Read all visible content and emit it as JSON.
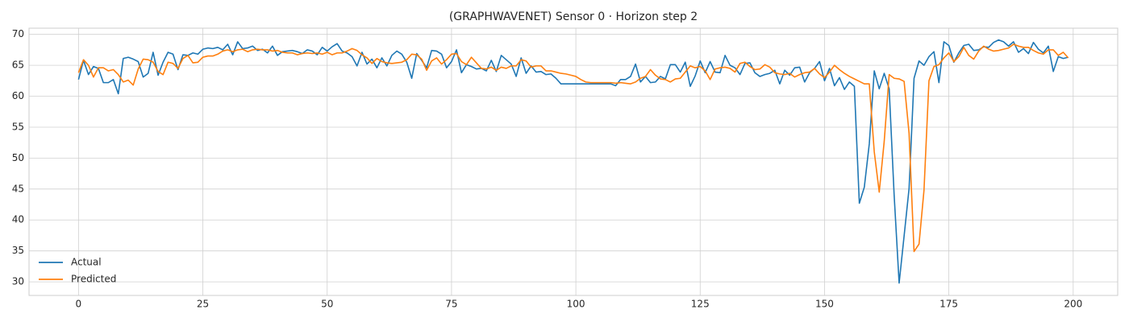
{
  "chart_data": {
    "type": "line",
    "title": "(GRAPHWAVENET) Sensor 0 · Horizon step 2",
    "x": [
      0,
      1,
      2,
      3,
      4,
      5,
      6,
      7,
      8,
      9,
      10,
      11,
      12,
      13,
      14,
      15,
      16,
      17,
      18,
      19,
      20,
      21,
      22,
      23,
      24,
      25,
      26,
      27,
      28,
      29,
      30,
      31,
      32,
      33,
      34,
      35,
      36,
      37,
      38,
      39,
      40,
      41,
      42,
      43,
      44,
      45,
      46,
      47,
      48,
      49,
      50,
      51,
      52,
      53,
      54,
      55,
      56,
      57,
      58,
      59,
      60,
      61,
      62,
      63,
      64,
      65,
      66,
      67,
      68,
      69,
      70,
      71,
      72,
      73,
      74,
      75,
      76,
      77,
      78,
      79,
      80,
      81,
      82,
      83,
      84,
      85,
      86,
      87,
      88,
      89,
      90,
      91,
      92,
      93,
      94,
      95,
      96,
      97,
      98,
      99,
      100,
      101,
      102,
      103,
      104,
      105,
      106,
      107,
      108,
      109,
      110,
      111,
      112,
      113,
      114,
      115,
      116,
      117,
      118,
      119,
      120,
      121,
      122,
      123,
      124,
      125,
      126,
      127,
      128,
      129,
      130,
      131,
      132,
      133,
      134,
      135,
      136,
      137,
      138,
      139,
      140,
      141,
      142,
      143,
      144,
      145,
      146,
      147,
      148,
      149,
      150,
      151,
      152,
      153,
      154,
      155,
      156,
      157,
      158,
      159,
      160,
      161,
      162,
      163,
      164,
      165,
      166,
      167,
      168,
      169,
      170,
      171,
      172,
      173,
      174,
      175,
      176,
      177,
      178,
      179,
      180,
      181,
      182,
      183,
      184,
      185,
      186,
      187,
      188,
      189,
      190,
      191,
      192,
      193,
      194,
      195,
      196,
      197,
      198,
      199
    ],
    "series": [
      {
        "name": "Actual",
        "color": "#1f77b4",
        "values": [
          62.7,
          65.8,
          63.5,
          64.8,
          64.5,
          62.2,
          62.2,
          62.7,
          60.4,
          66.1,
          66.3,
          66.0,
          65.6,
          63.1,
          63.7,
          67.1,
          63.4,
          65.5,
          67.1,
          66.8,
          64.3,
          66.7,
          66.6,
          67.0,
          66.8,
          67.6,
          67.8,
          67.7,
          67.9,
          67.5,
          68.4,
          66.7,
          68.8,
          67.7,
          67.8,
          68.1,
          67.4,
          67.6,
          67.0,
          68.1,
          66.6,
          67.2,
          67.3,
          67.4,
          67.2,
          66.9,
          67.5,
          67.3,
          66.7,
          67.9,
          67.3,
          68.0,
          68.5,
          67.3,
          67.0,
          66.4,
          64.9,
          67.1,
          65.2,
          66.0,
          64.6,
          66.2,
          64.9,
          66.6,
          67.3,
          66.8,
          65.5,
          62.9,
          66.9,
          65.8,
          64.6,
          67.4,
          67.3,
          66.8,
          64.6,
          65.6,
          67.5,
          63.8,
          65.1,
          64.8,
          64.4,
          64.5,
          64.1,
          65.8,
          64.0,
          66.6,
          65.9,
          65.2,
          63.2,
          66.2,
          63.7,
          64.9,
          63.9,
          64.0,
          63.5,
          63.6,
          62.9,
          62.0,
          62.0,
          62.0,
          62.0,
          62.0,
          62.0,
          62.0,
          62.0,
          62.0,
          62.0,
          62.0,
          61.7,
          62.7,
          62.7,
          63.2,
          65.2,
          62.3,
          63.2,
          62.2,
          62.3,
          63.2,
          62.8,
          65.1,
          65.1,
          63.9,
          65.5,
          61.6,
          63.3,
          65.7,
          63.8,
          65.6,
          63.9,
          63.8,
          66.6,
          65.0,
          64.6,
          63.5,
          65.3,
          65.4,
          63.8,
          63.2,
          63.5,
          63.7,
          64.2,
          62.0,
          64.2,
          63.4,
          64.6,
          64.7,
          62.3,
          63.8,
          64.5,
          65.6,
          62.5,
          64.5,
          61.7,
          63.0,
          61.1,
          62.3,
          61.6,
          42.7,
          45.3,
          52.3,
          64.1,
          61.2,
          63.7,
          61.2,
          44.0,
          29.8,
          37.4,
          45.1,
          62.9,
          65.7,
          65.0,
          66.4,
          67.2,
          62.2,
          68.8,
          68.2,
          65.5,
          67.0,
          68.2,
          68.4,
          67.4,
          67.5,
          68.0,
          67.9,
          68.7,
          69.1,
          68.8,
          68.1,
          68.8,
          67.1,
          67.7,
          66.9,
          68.7,
          67.6,
          67.0,
          68.1,
          64.0,
          66.4,
          66.1,
          66.3
        ]
      },
      {
        "name": "Predicted",
        "color": "#ff7f0e",
        "values": [
          63.8,
          65.9,
          65.0,
          63.1,
          64.6,
          64.6,
          64.1,
          64.3,
          63.5,
          62.3,
          62.6,
          61.8,
          64.4,
          66.0,
          65.9,
          65.5,
          64.0,
          63.5,
          65.5,
          65.3,
          64.5,
          66.1,
          66.6,
          65.4,
          65.5,
          66.3,
          66.5,
          66.5,
          66.8,
          67.3,
          67.5,
          67.2,
          67.5,
          67.6,
          67.2,
          67.5,
          67.6,
          67.5,
          67.5,
          67.3,
          67.4,
          67.1,
          67.0,
          67.0,
          66.7,
          66.9,
          67.0,
          66.9,
          67.0,
          66.8,
          67.1,
          66.7,
          67.0,
          67.0,
          67.3,
          67.7,
          67.4,
          66.7,
          66.2,
          65.3,
          66.1,
          65.6,
          65.4,
          65.3,
          65.4,
          65.5,
          65.9,
          66.8,
          66.7,
          66.0,
          64.2,
          65.7,
          66.2,
          65.2,
          65.9,
          66.8,
          66.9,
          65.6,
          65.1,
          66.3,
          65.4,
          64.5,
          64.4,
          64.7,
          64.2,
          64.7,
          64.5,
          64.9,
          64.9,
          65.9,
          65.7,
          64.7,
          64.9,
          64.9,
          64.1,
          64.1,
          63.9,
          63.7,
          63.6,
          63.4,
          63.2,
          62.7,
          62.3,
          62.2,
          62.2,
          62.2,
          62.2,
          62.2,
          62.1,
          62.2,
          62.1,
          62.0,
          62.3,
          62.9,
          63.2,
          64.3,
          63.4,
          62.8,
          62.7,
          62.3,
          62.8,
          62.9,
          63.9,
          64.9,
          64.6,
          64.8,
          64.1,
          62.7,
          64.4,
          64.6,
          64.7,
          64.5,
          63.9,
          65.3,
          65.5,
          64.8,
          64.3,
          64.4,
          65.1,
          64.7,
          63.8,
          63.6,
          63.5,
          63.7,
          63.1,
          63.5,
          63.8,
          63.9,
          64.5,
          63.6,
          63.0,
          63.9,
          65.0,
          64.3,
          63.7,
          63.2,
          62.8,
          62.4,
          62.0,
          62.0,
          51.0,
          44.5,
          52.7,
          63.5,
          62.9,
          62.8,
          62.4,
          54.0,
          34.9,
          36.1,
          44.8,
          62.5,
          64.8,
          65.1,
          66.2,
          67.0,
          65.6,
          66.4,
          67.9,
          66.6,
          66.0,
          67.3,
          68.1,
          67.6,
          67.3,
          67.4,
          67.6,
          67.8,
          68.4,
          68.1,
          67.9,
          67.9,
          67.4,
          67.0,
          66.8,
          67.5,
          67.5,
          66.6,
          67.1,
          66.2
        ]
      }
    ],
    "xlim": [
      -9.95,
      208.95
    ],
    "ylim": [
      27.8,
      71.0
    ],
    "xticks": [
      0,
      25,
      50,
      75,
      100,
      125,
      150,
      175,
      200
    ],
    "yticks": [
      30,
      35,
      40,
      45,
      50,
      55,
      60,
      65,
      70
    ],
    "grid": true,
    "legend": "lower left"
  }
}
